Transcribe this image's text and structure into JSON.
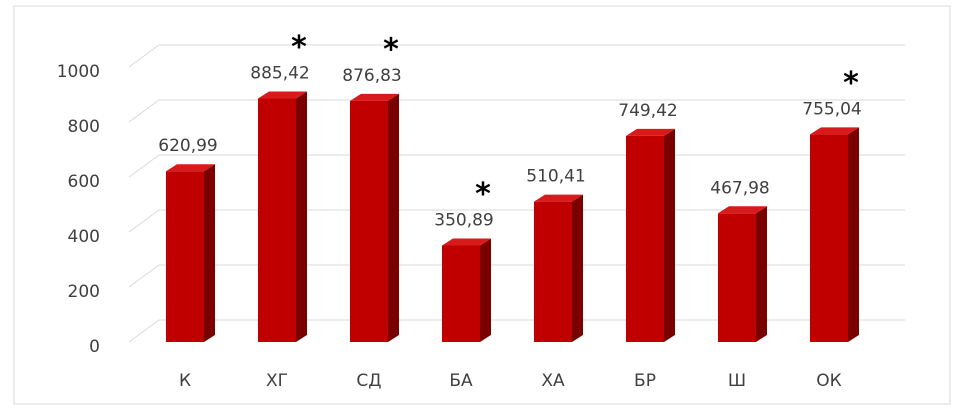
{
  "chart_data": {
    "type": "bar3d",
    "categories": [
      "К",
      "ХГ",
      "СД",
      "БА",
      "ХА",
      "БР",
      "Ш",
      "ОК"
    ],
    "values": [
      620.99,
      885.42,
      876.83,
      350.89,
      510.41,
      749.42,
      467.98,
      755.04
    ],
    "value_labels": [
      "620,99",
      "885,42",
      "876,83",
      "350,89",
      "510,41",
      "749,42",
      "467,98",
      "755,04"
    ],
    "color": "#c00000",
    "ylim": [
      0,
      1000
    ],
    "yticks": [
      0,
      200,
      400,
      600,
      800,
      1000
    ],
    "grid": true,
    "annotations": [
      {
        "text": "*",
        "category": "ХГ"
      },
      {
        "text": "*",
        "category": "СД"
      },
      {
        "text": "*",
        "category": "БА"
      },
      {
        "text": "*",
        "category": "ОК"
      }
    ]
  }
}
